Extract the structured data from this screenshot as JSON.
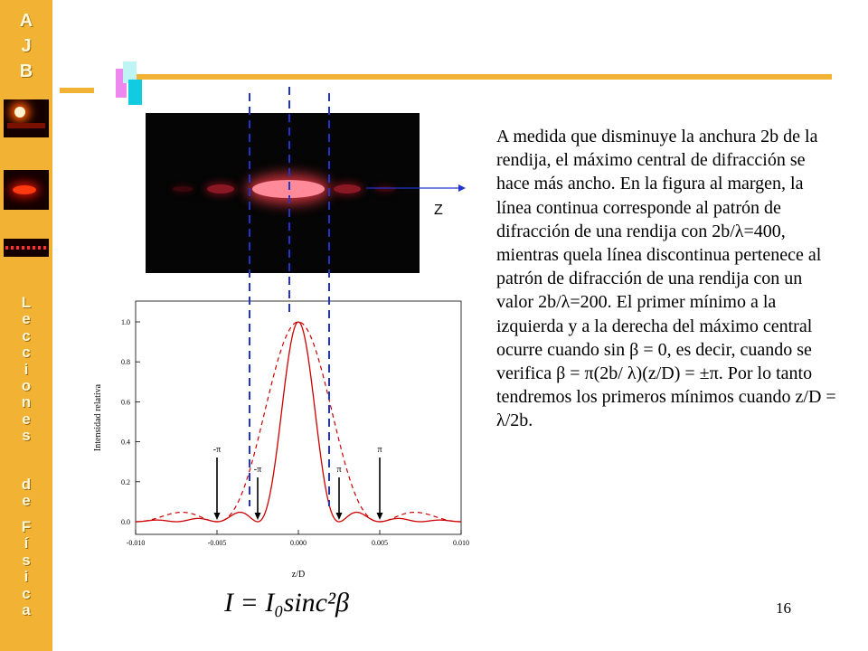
{
  "sidebar": {
    "logo_letters": [
      "A",
      "J",
      "B"
    ],
    "vertical_title_lines": [
      "Lecciones",
      "de",
      "Física"
    ]
  },
  "photo": {
    "axis_label": "Z"
  },
  "body_text": "A medida que disminuye la anchura 2b de la rendija, el máximo central de difracción se hace más ancho. En la figura al margen, la línea continua corresponde al patrón de difracción de una rendija con 2b/λ=400, mientras quela línea discontinua pertenece al patrón de difracción de una rendija con un valor 2b/λ=200. El primer mínimo a la izquierda y a la derecha del máximo central ocurre cuando sin β = 0, es decir, cuando se verifica β = π(2b/ λ)(z/D) = ±π. Por lo tanto tendremos los primeros mínimos cuando z/D = λ/2b.",
  "formula": "I = I₀sinc²β",
  "page_number": "16",
  "colors": {
    "sidebar": "#f2b233",
    "curve": "#cc0000",
    "guide_lines": "#2233cc"
  },
  "chart_data": {
    "type": "line",
    "xlabel": "z/D",
    "ylabel": "Intensidad relativa",
    "xlim": [
      -0.01,
      0.01
    ],
    "ylim": [
      0,
      1.0
    ],
    "x_ticks": [
      "-0.010",
      "-0.005",
      "0.000",
      "0.005",
      "0.010"
    ],
    "y_ticks": [
      "0.0",
      "0.2",
      "0.4",
      "0.6",
      "0.8",
      "1.0"
    ],
    "series": [
      {
        "style": "solid",
        "slit_2b_over_lambda": 400,
        "peak": 1.0,
        "first_minimum": 0.0025
      },
      {
        "style": "dashed",
        "slit_2b_over_lambda": 200,
        "peak": 1.0,
        "first_minimum": 0.005
      }
    ],
    "annotations": [
      {
        "label": "-π",
        "x": -0.005
      },
      {
        "label": "-π",
        "x": -0.0025
      },
      {
        "label": "π",
        "x": 0.0025
      },
      {
        "label": "π",
        "x": 0.005
      }
    ]
  }
}
